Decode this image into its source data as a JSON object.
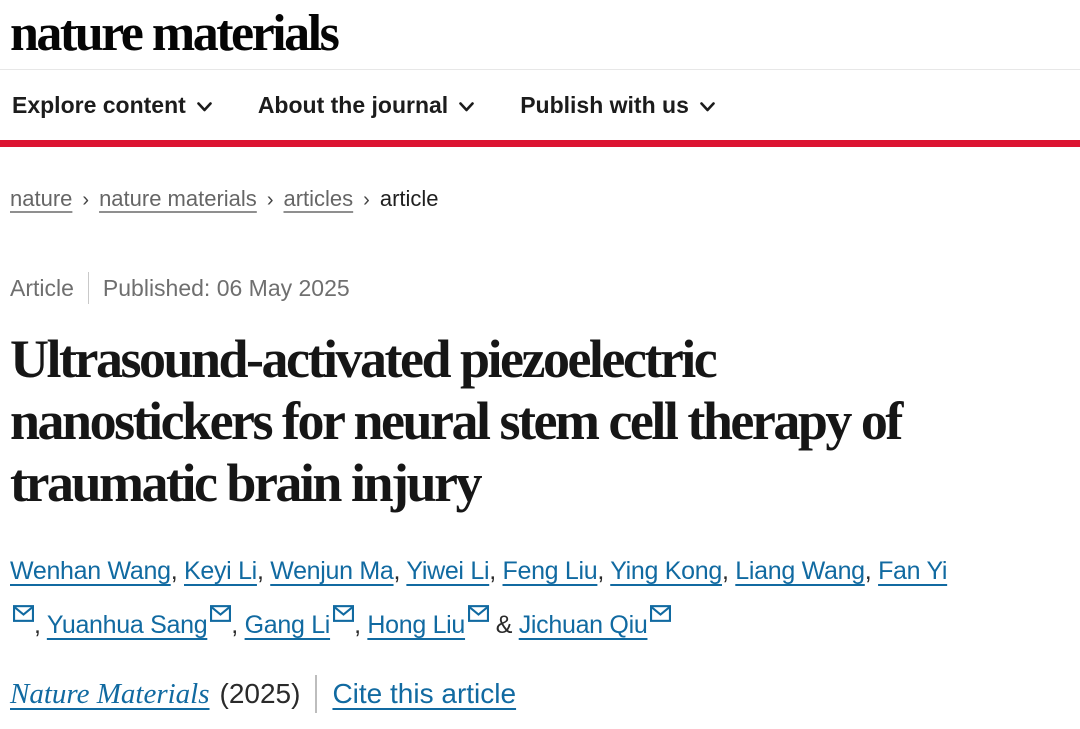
{
  "colors": {
    "brand_red": "#dc1432",
    "link_blue": "#116aa1"
  },
  "header": {
    "logo": "nature materials"
  },
  "nav": {
    "items": [
      {
        "label": "Explore content"
      },
      {
        "label": "About the journal"
      },
      {
        "label": "Publish with us"
      }
    ]
  },
  "breadcrumb": {
    "separator": "›",
    "items": [
      {
        "label": "nature",
        "is_link": true
      },
      {
        "label": "nature materials",
        "is_link": true
      },
      {
        "label": "articles",
        "is_link": true
      },
      {
        "label": "article",
        "is_link": false
      }
    ]
  },
  "meta": {
    "type": "Article",
    "published": "Published: 06 May 2025"
  },
  "article": {
    "title": "Ultrasound-activated piezoelectric nanostickers for neural stem cell therapy of traumatic brain injury",
    "title_lines": [
      "Ultrasound-activated piezoelectric",
      "nanostickers for neural stem cell therapy of",
      "traumatic brain injury"
    ]
  },
  "authors": {
    "list": [
      {
        "name": "Wenhan Wang",
        "email": false,
        "sep": ", "
      },
      {
        "name": "Keyi Li",
        "email": false,
        "sep": ", "
      },
      {
        "name": "Wenjun Ma",
        "email": false,
        "sep": ", "
      },
      {
        "name": "Yiwei Li",
        "email": false,
        "sep": ", "
      },
      {
        "name": "Feng Liu",
        "email": false,
        "sep": ", "
      },
      {
        "name": "Ying Kong",
        "email": false,
        "sep": ", "
      },
      {
        "name": "Liang Wang",
        "email": false,
        "sep": ", "
      },
      {
        "name": "Fan Yi",
        "email": true,
        "break_before_email": true,
        "sep": ", "
      },
      {
        "name": "Yuanhua Sang",
        "email": true,
        "sep": ", "
      },
      {
        "name": "Gang Li",
        "email": true,
        "sep": ", "
      },
      {
        "name": "Hong Liu",
        "email": true,
        "sep": " & "
      },
      {
        "name": "Jichuan Qiu",
        "email": true,
        "sep": ""
      }
    ]
  },
  "citation": {
    "journal": "Nature Materials",
    "year": "(2025)",
    "cite_label": "Cite this article"
  }
}
